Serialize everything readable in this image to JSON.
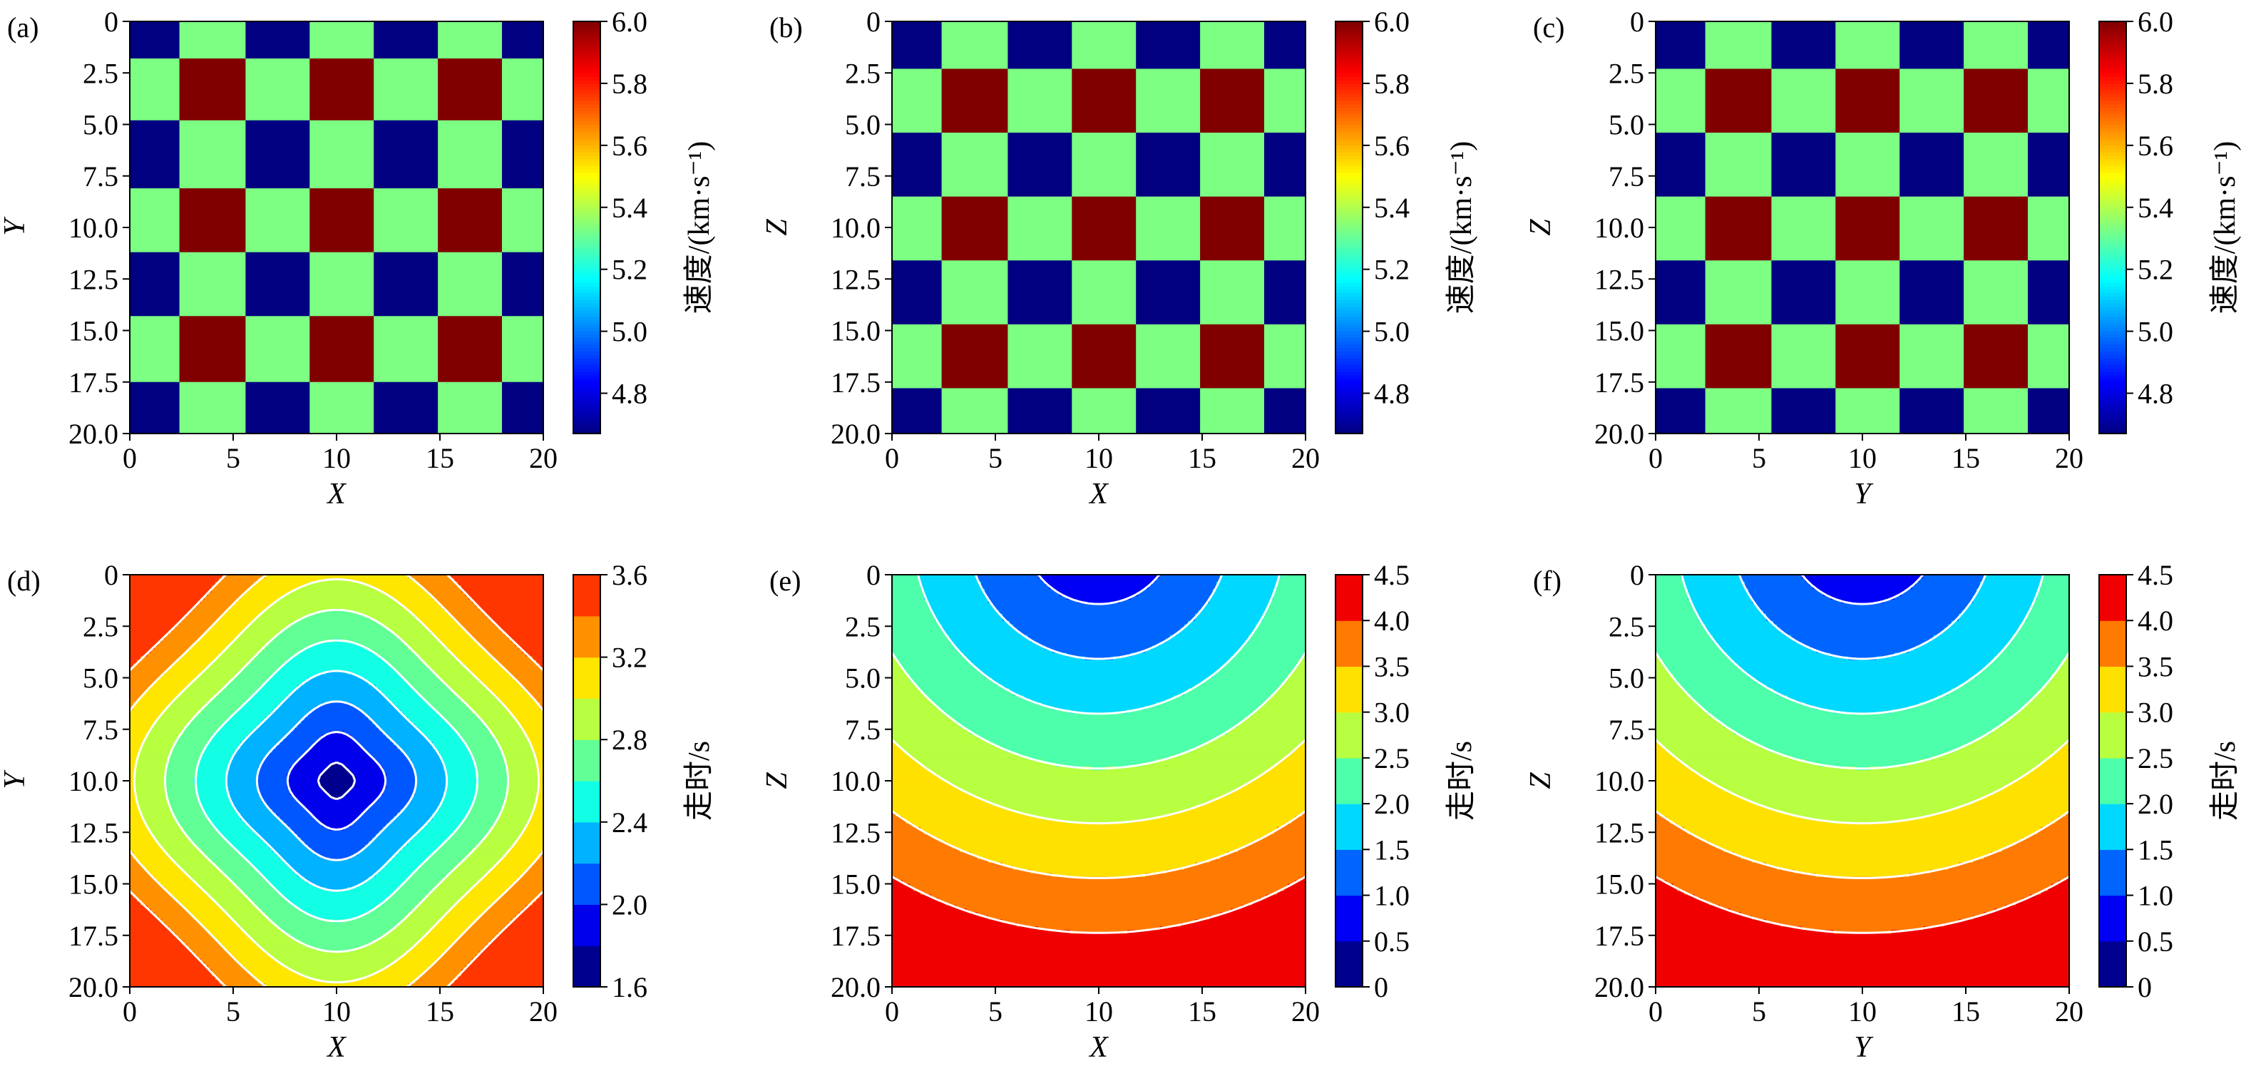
{
  "figure": {
    "panels": [
      {
        "label": "(a)",
        "xlabel": "X",
        "ylabel": "Y",
        "cbar_label": "速度/(km·s⁻¹)",
        "kind": "checker",
        "surface": "none"
      },
      {
        "label": "(b)",
        "xlabel": "X",
        "ylabel": "Z",
        "cbar_label": "速度/(km·s⁻¹)",
        "kind": "checker",
        "surface": "none"
      },
      {
        "label": "(c)",
        "xlabel": "Y",
        "ylabel": "Z",
        "cbar_label": "速度/(km·s⁻¹)",
        "kind": "checker",
        "surface": "none"
      },
      {
        "label": "(d)",
        "xlabel": "X",
        "ylabel": "Y",
        "cbar_label": "走时/s",
        "kind": "contour",
        "surface": "radial-xy"
      },
      {
        "label": "(e)",
        "xlabel": "X",
        "ylabel": "Z",
        "cbar_label": "走时/s",
        "kind": "contour",
        "surface": "depth"
      },
      {
        "label": "(f)",
        "xlabel": "Y",
        "ylabel": "Z",
        "cbar_label": "走时/s",
        "kind": "contour",
        "surface": "depth"
      }
    ]
  },
  "chart_data": [
    {
      "type": "heatmap",
      "panel": "(a)",
      "xlabel": "X",
      "ylabel": "Y",
      "colorbar_label": "速度/(km·s⁻¹)",
      "xlim": [
        0,
        20
      ],
      "ylim": [
        20,
        0
      ],
      "xticks": [
        0,
        5,
        10,
        15,
        20
      ],
      "xtick_labels": [
        "0",
        "5",
        "10",
        "15",
        "20"
      ],
      "yticks": [
        0,
        2.5,
        5,
        7.5,
        10,
        12.5,
        15,
        17.5,
        20
      ],
      "ytick_labels": [
        "0",
        "2.5",
        "5.0",
        "7.5",
        "10.0",
        "12.5",
        "15.0",
        "17.5",
        "20.0"
      ],
      "colorbar_range": [
        4.67,
        6.0
      ],
      "colorbar_ticks": [
        4.8,
        5.0,
        5.2,
        5.4,
        5.6,
        5.8,
        6.0
      ],
      "colorbar_tick_labels": [
        "4.8",
        "5.0",
        "5.2",
        "5.4",
        "5.6",
        "5.8",
        "6.0"
      ],
      "colormap": "jet",
      "x_edges": [
        0,
        2.4,
        5.6,
        8.7,
        11.8,
        14.9,
        18.0,
        20
      ],
      "y_edges": [
        0,
        1.8,
        4.8,
        8.1,
        11.2,
        14.3,
        17.5,
        20
      ],
      "values": [
        [
          4.67,
          5.33,
          4.67,
          5.33,
          4.67,
          5.33,
          4.67
        ],
        [
          5.33,
          6.0,
          5.33,
          6.0,
          5.33,
          6.0,
          5.33
        ],
        [
          4.67,
          5.33,
          4.67,
          5.33,
          4.67,
          5.33,
          4.67
        ],
        [
          5.33,
          6.0,
          5.33,
          6.0,
          5.33,
          6.0,
          5.33
        ],
        [
          4.67,
          5.33,
          4.67,
          5.33,
          4.67,
          5.33,
          4.67
        ],
        [
          5.33,
          6.0,
          5.33,
          6.0,
          5.33,
          6.0,
          5.33
        ],
        [
          4.67,
          5.33,
          4.67,
          5.33,
          4.67,
          5.33,
          4.67
        ]
      ]
    },
    {
      "type": "heatmap",
      "panel": "(b)",
      "xlabel": "X",
      "ylabel": "Z",
      "colorbar_label": "速度/(km·s⁻¹)",
      "xlim": [
        0,
        20
      ],
      "ylim": [
        20,
        0
      ],
      "xticks": [
        0,
        5,
        10,
        15,
        20
      ],
      "xtick_labels": [
        "0",
        "5",
        "10",
        "15",
        "20"
      ],
      "yticks": [
        0,
        2.5,
        5,
        7.5,
        10,
        12.5,
        15,
        17.5,
        20
      ],
      "ytick_labels": [
        "0",
        "2.5",
        "5.0",
        "7.5",
        "10.0",
        "12.5",
        "15.0",
        "17.5",
        "20.0"
      ],
      "colorbar_range": [
        4.67,
        6.0
      ],
      "colorbar_ticks": [
        4.8,
        5.0,
        5.2,
        5.4,
        5.6,
        5.8,
        6.0
      ],
      "colorbar_tick_labels": [
        "4.8",
        "5.0",
        "5.2",
        "5.4",
        "5.6",
        "5.8",
        "6.0"
      ],
      "colormap": "jet",
      "x_edges": [
        0,
        2.4,
        5.6,
        8.7,
        11.8,
        14.9,
        18.0,
        20
      ],
      "y_edges": [
        0,
        2.3,
        5.4,
        8.5,
        11.6,
        14.7,
        17.8,
        20
      ],
      "values": [
        [
          4.67,
          5.33,
          4.67,
          5.33,
          4.67,
          5.33,
          4.67
        ],
        [
          5.33,
          6.0,
          5.33,
          6.0,
          5.33,
          6.0,
          5.33
        ],
        [
          4.67,
          5.33,
          4.67,
          5.33,
          4.67,
          5.33,
          4.67
        ],
        [
          5.33,
          6.0,
          5.33,
          6.0,
          5.33,
          6.0,
          5.33
        ],
        [
          4.67,
          5.33,
          4.67,
          5.33,
          4.67,
          5.33,
          4.67
        ],
        [
          5.33,
          6.0,
          5.33,
          6.0,
          5.33,
          6.0,
          5.33
        ],
        [
          4.67,
          5.33,
          4.67,
          5.33,
          4.67,
          5.33,
          4.67
        ]
      ]
    },
    {
      "type": "heatmap",
      "panel": "(c)",
      "xlabel": "Y",
      "ylabel": "Z",
      "colorbar_label": "速度/(km·s⁻¹)",
      "xlim": [
        0,
        20
      ],
      "ylim": [
        20,
        0
      ],
      "xticks": [
        0,
        5,
        10,
        15,
        20
      ],
      "xtick_labels": [
        "0",
        "5",
        "10",
        "15",
        "20"
      ],
      "yticks": [
        0,
        2.5,
        5,
        7.5,
        10,
        12.5,
        15,
        17.5,
        20
      ],
      "ytick_labels": [
        "0",
        "2.5",
        "5.0",
        "7.5",
        "10.0",
        "12.5",
        "15.0",
        "17.5",
        "20.0"
      ],
      "colorbar_range": [
        4.67,
        6.0
      ],
      "colorbar_ticks": [
        4.8,
        5.0,
        5.2,
        5.4,
        5.6,
        5.8,
        6.0
      ],
      "colorbar_tick_labels": [
        "4.8",
        "5.0",
        "5.2",
        "5.4",
        "5.6",
        "5.8",
        "6.0"
      ],
      "colormap": "jet",
      "x_edges": [
        0,
        2.4,
        5.6,
        8.7,
        11.8,
        14.9,
        18.0,
        20
      ],
      "y_edges": [
        0,
        2.3,
        5.4,
        8.5,
        11.6,
        14.7,
        17.8,
        20
      ],
      "values": [
        [
          4.67,
          5.33,
          4.67,
          5.33,
          4.67,
          5.33,
          4.67
        ],
        [
          5.33,
          6.0,
          5.33,
          6.0,
          5.33,
          6.0,
          5.33
        ],
        [
          4.67,
          5.33,
          4.67,
          5.33,
          4.67,
          5.33,
          4.67
        ],
        [
          5.33,
          6.0,
          5.33,
          6.0,
          5.33,
          6.0,
          5.33
        ],
        [
          4.67,
          5.33,
          4.67,
          5.33,
          4.67,
          5.33,
          4.67
        ],
        [
          5.33,
          6.0,
          5.33,
          6.0,
          5.33,
          6.0,
          5.33
        ],
        [
          4.67,
          5.33,
          4.67,
          5.33,
          4.67,
          5.33,
          4.67
        ]
      ]
    },
    {
      "type": "heatmap",
      "panel": "(d)",
      "xlabel": "X",
      "ylabel": "Y",
      "colorbar_label": "走时/s",
      "xlim": [
        0,
        20
      ],
      "ylim": [
        20,
        0
      ],
      "xticks": [
        0,
        5,
        10,
        15,
        20
      ],
      "xtick_labels": [
        "0",
        "5",
        "10",
        "15",
        "20"
      ],
      "yticks": [
        0,
        2.5,
        5,
        7.5,
        10,
        12.5,
        15,
        17.5,
        20
      ],
      "ytick_labels": [
        "0",
        "2.5",
        "5.0",
        "7.5",
        "10.0",
        "12.5",
        "15.0",
        "17.5",
        "20.0"
      ],
      "colorbar_range": [
        1.6,
        3.6
      ],
      "colorbar_ticks": [
        1.6,
        2.0,
        2.4,
        2.8,
        3.2,
        3.6
      ],
      "colorbar_tick_labels": [
        "1.6",
        "2.0",
        "2.4",
        "2.8",
        "3.2",
        "3.6"
      ],
      "levels": [
        1.6,
        1.8,
        2.0,
        2.2,
        2.4,
        2.6,
        2.8,
        3.0,
        3.2,
        3.4,
        3.6
      ],
      "level_colors": [
        "#00008f",
        "#0000ea",
        "#0056ff",
        "#00b2ff",
        "#12ffe6",
        "#61ff96",
        "#b7ff40",
        "#ffe600",
        "#ff9100",
        "#ff3600"
      ],
      "source": [
        10,
        10
      ],
      "contour_lines": "white"
    },
    {
      "type": "heatmap",
      "panel": "(e)",
      "xlabel": "X",
      "ylabel": "Z",
      "colorbar_label": "走时/s",
      "xlim": [
        0,
        20
      ],
      "ylim": [
        20,
        0
      ],
      "xticks": [
        0,
        5,
        10,
        15,
        20
      ],
      "xtick_labels": [
        "0",
        "5",
        "10",
        "15",
        "20"
      ],
      "yticks": [
        0,
        2.5,
        5,
        7.5,
        10,
        12.5,
        15,
        17.5,
        20
      ],
      "ytick_labels": [
        "0",
        "2.5",
        "5.0",
        "7.5",
        "10.0",
        "12.5",
        "15.0",
        "17.5",
        "20.0"
      ],
      "colorbar_range": [
        0,
        4.5
      ],
      "colorbar_ticks": [
        0,
        0.5,
        1.0,
        1.5,
        2.0,
        2.5,
        3.0,
        3.5,
        4.0,
        4.5
      ],
      "colorbar_tick_labels": [
        "0",
        "0.5",
        "1.0",
        "1.5",
        "2.0",
        "2.5",
        "3.0",
        "3.5",
        "4.0",
        "4.5"
      ],
      "levels": [
        0,
        0.5,
        1.0,
        1.5,
        2.0,
        2.5,
        3.0,
        3.5,
        4.0,
        4.5
      ],
      "level_colors": [
        "#00008f",
        "#0000f5",
        "#0064ff",
        "#00d8ff",
        "#4dffaa",
        "#b7ff40",
        "#ffe100",
        "#ff7a00",
        "#f00000"
      ],
      "source": [
        10,
        0
      ],
      "contour_lines": "white"
    },
    {
      "type": "heatmap",
      "panel": "(f)",
      "xlabel": "Y",
      "ylabel": "Z",
      "colorbar_label": "走时/s",
      "xlim": [
        0,
        20
      ],
      "ylim": [
        20,
        0
      ],
      "xticks": [
        0,
        5,
        10,
        15,
        20
      ],
      "xtick_labels": [
        "0",
        "5",
        "10",
        "15",
        "20"
      ],
      "yticks": [
        0,
        2.5,
        5,
        7.5,
        10,
        12.5,
        15,
        17.5,
        20
      ],
      "ytick_labels": [
        "0",
        "2.5",
        "5.0",
        "7.5",
        "10.0",
        "12.5",
        "15.0",
        "17.5",
        "20.0"
      ],
      "colorbar_range": [
        0,
        4.5
      ],
      "colorbar_ticks": [
        0,
        0.5,
        1.0,
        1.5,
        2.0,
        2.5,
        3.0,
        3.5,
        4.0,
        4.5
      ],
      "colorbar_tick_labels": [
        "0",
        "0.5",
        "1.0",
        "1.5",
        "2.0",
        "2.5",
        "3.0",
        "3.5",
        "4.0",
        "4.5"
      ],
      "levels": [
        0,
        0.5,
        1.0,
        1.5,
        2.0,
        2.5,
        3.0,
        3.5,
        4.0,
        4.5
      ],
      "level_colors": [
        "#00008f",
        "#0000f5",
        "#0064ff",
        "#00d8ff",
        "#4dffaa",
        "#b7ff40",
        "#ffe100",
        "#ff7a00",
        "#f00000"
      ],
      "source": [
        10,
        0
      ],
      "contour_lines": "white"
    }
  ]
}
